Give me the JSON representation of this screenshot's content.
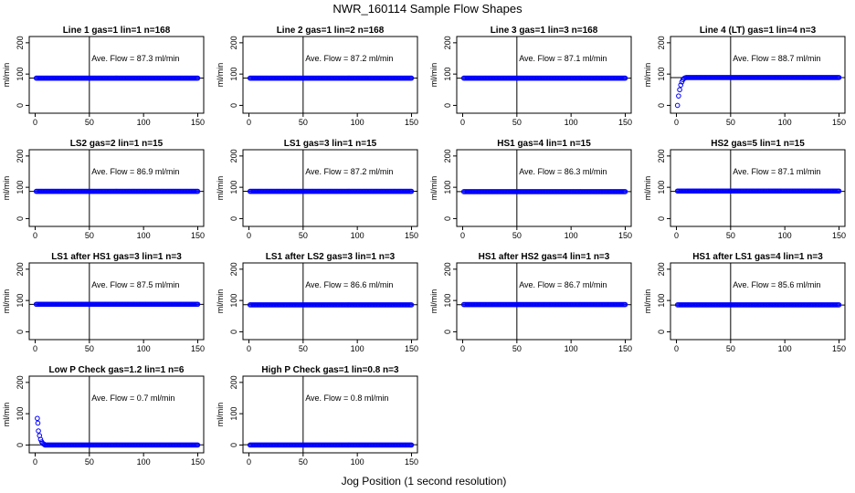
{
  "figure": {
    "title": "NWR_160114  Sample Flow Shapes",
    "xlabel": "Jog Position (1 second resolution)"
  },
  "chart_data": [
    {
      "type": "scatter",
      "title": "Line 1 gas=1 lin=1 n=168",
      "annotation": "Ave. Flow =  87.3  ml/min",
      "ylabel": "ml/min",
      "xlim": [
        0,
        150
      ],
      "ylim": [
        -25,
        220
      ],
      "xticks": [
        0,
        50,
        100,
        150
      ],
      "yticks": [
        0,
        100,
        200
      ],
      "vline_x": 50,
      "hline_y": 87.3,
      "point_color": "#0000ff",
      "baseline": 87,
      "ramp": []
    },
    {
      "type": "scatter",
      "title": "Line 2 gas=1 lin=2 n=168",
      "annotation": "Ave. Flow =  87.2  ml/min",
      "ylabel": "ml/min",
      "xlim": [
        0,
        150
      ],
      "ylim": [
        -25,
        220
      ],
      "xticks": [
        0,
        50,
        100,
        150
      ],
      "yticks": [
        0,
        100,
        200
      ],
      "vline_x": 50,
      "hline_y": 87.2,
      "point_color": "#0000ff",
      "baseline": 87,
      "ramp": []
    },
    {
      "type": "scatter",
      "title": "Line 3 gas=1 lin=3 n=168",
      "annotation": "Ave. Flow =  87.1  ml/min",
      "ylabel": "ml/min",
      "xlim": [
        0,
        150
      ],
      "ylim": [
        -25,
        220
      ],
      "xticks": [
        0,
        50,
        100,
        150
      ],
      "yticks": [
        0,
        100,
        200
      ],
      "vline_x": 50,
      "hline_y": 87.1,
      "point_color": "#0000ff",
      "baseline": 87,
      "ramp": []
    },
    {
      "type": "scatter",
      "title": "Line 4 (LT) gas=1 lin=4 n=3",
      "annotation": "Ave. Flow =  88.7  ml/min",
      "ylabel": "ml/min",
      "xlim": [
        0,
        150
      ],
      "ylim": [
        -25,
        220
      ],
      "xticks": [
        0,
        50,
        100,
        150
      ],
      "yticks": [
        0,
        100,
        200
      ],
      "vline_x": 50,
      "hline_y": 88.7,
      "point_color": "#0000ff",
      "baseline": 89,
      "ramp": [
        [
          1,
          0
        ],
        [
          2,
          30
        ],
        [
          3,
          50
        ],
        [
          4,
          65
        ],
        [
          5,
          75
        ],
        [
          6,
          82
        ],
        [
          7,
          86
        ],
        [
          8,
          88
        ]
      ]
    },
    {
      "type": "scatter",
      "title": "LS2 gas=2 lin=1 n=15",
      "annotation": "Ave. Flow =  86.9  ml/min",
      "ylabel": "ml/min",
      "xlim": [
        0,
        150
      ],
      "ylim": [
        -25,
        220
      ],
      "xticks": [
        0,
        50,
        100,
        150
      ],
      "yticks": [
        0,
        100,
        200
      ],
      "vline_x": 50,
      "hline_y": 86.9,
      "point_color": "#0000ff",
      "baseline": 87,
      "ramp": []
    },
    {
      "type": "scatter",
      "title": "LS1 gas=3 lin=1 n=15",
      "annotation": "Ave. Flow =  87.2  ml/min",
      "ylabel": "ml/min",
      "xlim": [
        0,
        150
      ],
      "ylim": [
        -25,
        220
      ],
      "xticks": [
        0,
        50,
        100,
        150
      ],
      "yticks": [
        0,
        100,
        200
      ],
      "vline_x": 50,
      "hline_y": 87.2,
      "point_color": "#0000ff",
      "baseline": 87,
      "ramp": []
    },
    {
      "type": "scatter",
      "title": "HS1 gas=4 lin=1 n=15",
      "annotation": "Ave. Flow =  86.3  ml/min",
      "ylabel": "ml/min",
      "xlim": [
        0,
        150
      ],
      "ylim": [
        -25,
        220
      ],
      "xticks": [
        0,
        50,
        100,
        150
      ],
      "yticks": [
        0,
        100,
        200
      ],
      "vline_x": 50,
      "hline_y": 86.3,
      "point_color": "#0000ff",
      "baseline": 86,
      "ramp": []
    },
    {
      "type": "scatter",
      "title": "HS2 gas=5 lin=1 n=15",
      "annotation": "Ave. Flow =  87.1  ml/min",
      "ylabel": "ml/min",
      "xlim": [
        0,
        150
      ],
      "ylim": [
        -25,
        220
      ],
      "xticks": [
        0,
        50,
        100,
        150
      ],
      "yticks": [
        0,
        100,
        200
      ],
      "vline_x": 50,
      "hline_y": 87.1,
      "point_color": "#0000ff",
      "baseline": 88,
      "ramp": []
    },
    {
      "type": "scatter",
      "title": "LS1 after HS1 gas=3 lin=1 n=3",
      "annotation": "Ave. Flow =  87.5  ml/min",
      "ylabel": "ml/min",
      "xlim": [
        0,
        150
      ],
      "ylim": [
        -25,
        220
      ],
      "xticks": [
        0,
        50,
        100,
        150
      ],
      "yticks": [
        0,
        100,
        200
      ],
      "vline_x": 50,
      "hline_y": 87.5,
      "point_color": "#0000ff",
      "baseline": 88,
      "ramp": []
    },
    {
      "type": "scatter",
      "title": "LS1 after LS2 gas=3 lin=1 n=3",
      "annotation": "Ave. Flow =  86.6  ml/min",
      "ylabel": "ml/min",
      "xlim": [
        0,
        150
      ],
      "ylim": [
        -25,
        220
      ],
      "xticks": [
        0,
        50,
        100,
        150
      ],
      "yticks": [
        0,
        100,
        200
      ],
      "vline_x": 50,
      "hline_y": 86.6,
      "point_color": "#0000ff",
      "baseline": 86,
      "ramp": []
    },
    {
      "type": "scatter",
      "title": "HS1 after HS2 gas=4 lin=1 n=3",
      "annotation": "Ave. Flow =  86.7  ml/min",
      "ylabel": "ml/min",
      "xlim": [
        0,
        150
      ],
      "ylim": [
        -25,
        220
      ],
      "xticks": [
        0,
        50,
        100,
        150
      ],
      "yticks": [
        0,
        100,
        200
      ],
      "vline_x": 50,
      "hline_y": 86.7,
      "point_color": "#0000ff",
      "baseline": 87,
      "ramp": []
    },
    {
      "type": "scatter",
      "title": "HS1 after LS1 gas=4 lin=1 n=3",
      "annotation": "Ave. Flow =  85.6  ml/min",
      "ylabel": "ml/min",
      "xlim": [
        0,
        150
      ],
      "ylim": [
        -25,
        220
      ],
      "xticks": [
        0,
        50,
        100,
        150
      ],
      "yticks": [
        0,
        100,
        200
      ],
      "vline_x": 50,
      "hline_y": 85.6,
      "point_color": "#0000ff",
      "baseline": 86,
      "ramp": []
    },
    {
      "type": "scatter",
      "title": "Low P Check gas=1.2 lin=1 n=6",
      "annotation": "Ave. Flow =  0.7  ml/min",
      "ylabel": "ml/min",
      "xlim": [
        0,
        150
      ],
      "ylim": [
        -25,
        220
      ],
      "xticks": [
        0,
        50,
        100,
        150
      ],
      "yticks": [
        0,
        100,
        200
      ],
      "vline_x": 50,
      "hline_y": 0.7,
      "point_color": "#0000ff",
      "baseline": 0,
      "ramp": [
        [
          2,
          85
        ],
        [
          2.5,
          70
        ],
        [
          3,
          45
        ],
        [
          4,
          30
        ],
        [
          5,
          18
        ],
        [
          6,
          10
        ],
        [
          7,
          5
        ],
        [
          8,
          3
        ]
      ]
    },
    {
      "type": "scatter",
      "title": "High P Check gas=1 lin=0.8 n=3",
      "annotation": "Ave. Flow =  0.8  ml/min",
      "ylabel": "ml/min",
      "xlim": [
        0,
        150
      ],
      "ylim": [
        -25,
        220
      ],
      "xticks": [
        0,
        50,
        100,
        150
      ],
      "yticks": [
        0,
        100,
        200
      ],
      "vline_x": 50,
      "hline_y": 0.8,
      "point_color": "#0000ff",
      "baseline": 0,
      "ramp": []
    }
  ]
}
